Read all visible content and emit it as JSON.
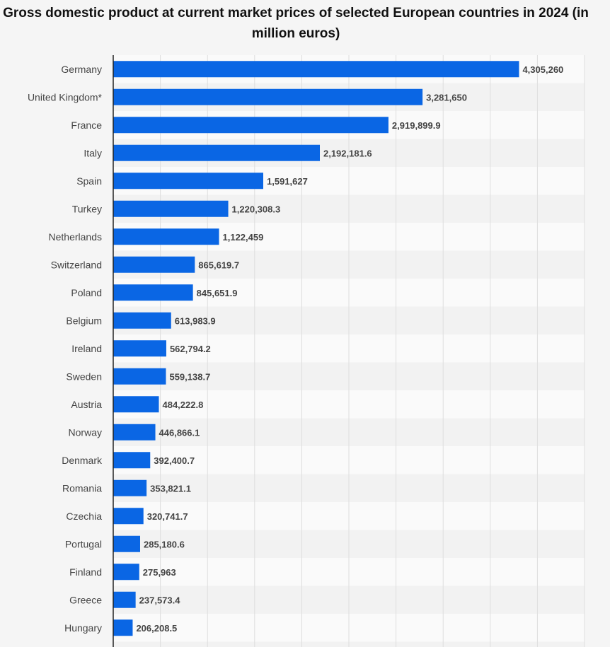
{
  "chart_data": {
    "type": "bar",
    "orientation": "horizontal",
    "title": "Gross domestic product at current market prices of selected European countries in 2024 (in million euros)",
    "xlabel": "",
    "ylabel": "",
    "xlim": [
      0,
      5000000
    ],
    "grid": true,
    "legend": "none",
    "bar_color": "#0a66e4",
    "categories": [
      "Germany",
      "United Kingdom*",
      "France",
      "Italy",
      "Spain",
      "Turkey",
      "Netherlands",
      "Switzerland",
      "Poland",
      "Belgium",
      "Ireland",
      "Sweden",
      "Austria",
      "Norway",
      "Denmark",
      "Romania",
      "Czechia",
      "Portugal",
      "Finland",
      "Greece",
      "Hungary"
    ],
    "values": [
      4305260,
      3281650,
      2919899.9,
      2192181.6,
      1591627,
      1220308.3,
      1122459,
      865619.7,
      845651.9,
      613983.9,
      562794.2,
      559138.7,
      484222.8,
      446866.1,
      392400.7,
      353821.1,
      320741.7,
      285180.6,
      275963,
      237573.4,
      206208.5
    ],
    "value_labels": [
      "4,305,260",
      "3,281,650",
      "2,919,899.9",
      "2,192,181.6",
      "1,591,627",
      "1,220,308.3",
      "1,122,459",
      "865,619.7",
      "845,651.9",
      "613,983.9",
      "562,794.2",
      "559,138.7",
      "484,222.8",
      "446,866.1",
      "392,400.7",
      "353,821.1",
      "320,741.7",
      "285,180.6",
      "275,963",
      "237,573.4",
      "206,208.5"
    ]
  }
}
